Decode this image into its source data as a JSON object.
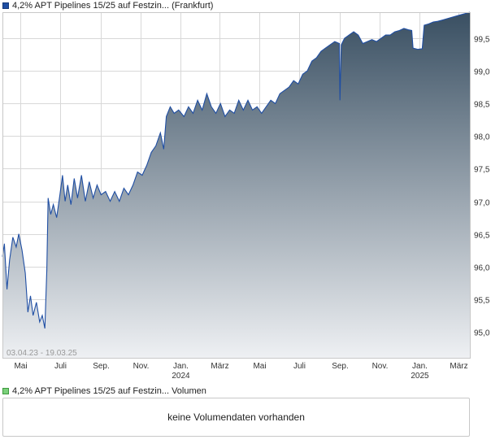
{
  "price_chart": {
    "legend": "4,2% APT Pipelines 15/25 auf Festzin... (Frankfurt)",
    "range_label": "03.04.23 - 19.03.25",
    "colors": {
      "line": "#1f4ea3",
      "fill_top": "#394f62",
      "fill_bottom": "#eef0f3",
      "grid": "#d8d8d8",
      "frame": "#c8c8c8"
    }
  },
  "volume_chart": {
    "legend": "4,2% APT Pipelines 15/25 auf Festzin... Volumen",
    "message": "keine Volumendaten vorhanden"
  },
  "chart_data": {
    "type": "area",
    "x_unit": "month",
    "xlim": [
      "2023-04-03",
      "2025-03-19"
    ],
    "ylim": [
      94.6,
      99.9
    ],
    "y_ticks": [
      95.0,
      95.5,
      96.0,
      96.5,
      97.0,
      97.5,
      98.0,
      98.5,
      99.0,
      99.5
    ],
    "y_tick_labels": [
      "95,0",
      "95,5",
      "96,0",
      "96,5",
      "97,0",
      "97,5",
      "98,0",
      "98,5",
      "99,0",
      "99,5"
    ],
    "x_ticks": [
      {
        "date": "2023-05-01",
        "label": "Mai",
        "year": ""
      },
      {
        "date": "2023-07-01",
        "label": "Juli",
        "year": ""
      },
      {
        "date": "2023-09-01",
        "label": "Sep.",
        "year": ""
      },
      {
        "date": "2023-11-01",
        "label": "Nov.",
        "year": ""
      },
      {
        "date": "2024-01-01",
        "label": "Jan.",
        "year": "2024"
      },
      {
        "date": "2024-03-01",
        "label": "März",
        "year": ""
      },
      {
        "date": "2024-05-01",
        "label": "Mai",
        "year": ""
      },
      {
        "date": "2024-07-01",
        "label": "Juli",
        "year": ""
      },
      {
        "date": "2024-09-01",
        "label": "Sep.",
        "year": ""
      },
      {
        "date": "2024-11-01",
        "label": "Nov.",
        "year": ""
      },
      {
        "date": "2025-01-01",
        "label": "Jan.",
        "year": "2025"
      },
      {
        "date": "2025-03-01",
        "label": "März",
        "year": ""
      }
    ],
    "grid": true,
    "series": [
      {
        "points": [
          [
            "2023-04-03",
            96.15
          ],
          [
            "2023-04-06",
            96.35
          ],
          [
            "2023-04-10",
            95.65
          ],
          [
            "2023-04-14",
            96.1
          ],
          [
            "2023-04-19",
            96.45
          ],
          [
            "2023-04-24",
            96.3
          ],
          [
            "2023-04-28",
            96.5
          ],
          [
            "2023-05-03",
            96.25
          ],
          [
            "2023-05-08",
            95.9
          ],
          [
            "2023-05-12",
            95.3
          ],
          [
            "2023-05-16",
            95.55
          ],
          [
            "2023-05-20",
            95.25
          ],
          [
            "2023-05-25",
            95.45
          ],
          [
            "2023-05-30",
            95.15
          ],
          [
            "2023-06-03",
            95.25
          ],
          [
            "2023-06-07",
            95.05
          ],
          [
            "2023-06-10",
            95.95
          ],
          [
            "2023-06-12",
            97.05
          ],
          [
            "2023-06-16",
            96.8
          ],
          [
            "2023-06-20",
            96.95
          ],
          [
            "2023-06-25",
            96.75
          ],
          [
            "2023-06-30",
            97.1
          ],
          [
            "2023-07-04",
            97.4
          ],
          [
            "2023-07-08",
            97.0
          ],
          [
            "2023-07-12",
            97.25
          ],
          [
            "2023-07-17",
            96.95
          ],
          [
            "2023-07-22",
            97.35
          ],
          [
            "2023-07-27",
            97.05
          ],
          [
            "2023-08-02",
            97.4
          ],
          [
            "2023-08-08",
            97.0
          ],
          [
            "2023-08-14",
            97.3
          ],
          [
            "2023-08-20",
            97.05
          ],
          [
            "2023-08-26",
            97.25
          ],
          [
            "2023-09-01",
            97.1
          ],
          [
            "2023-09-08",
            97.15
          ],
          [
            "2023-09-15",
            97.0
          ],
          [
            "2023-09-22",
            97.15
          ],
          [
            "2023-09-29",
            97.0
          ],
          [
            "2023-10-06",
            97.2
          ],
          [
            "2023-10-13",
            97.1
          ],
          [
            "2023-10-20",
            97.25
          ],
          [
            "2023-10-27",
            97.45
          ],
          [
            "2023-11-03",
            97.4
          ],
          [
            "2023-11-10",
            97.55
          ],
          [
            "2023-11-17",
            97.75
          ],
          [
            "2023-11-24",
            97.85
          ],
          [
            "2023-12-01",
            98.05
          ],
          [
            "2023-12-06",
            97.8
          ],
          [
            "2023-12-10",
            98.3
          ],
          [
            "2023-12-16",
            98.45
          ],
          [
            "2023-12-22",
            98.35
          ],
          [
            "2023-12-29",
            98.4
          ],
          [
            "2024-01-06",
            98.3
          ],
          [
            "2024-01-13",
            98.45
          ],
          [
            "2024-01-20",
            98.35
          ],
          [
            "2024-01-27",
            98.55
          ],
          [
            "2024-02-03",
            98.4
          ],
          [
            "2024-02-10",
            98.65
          ],
          [
            "2024-02-17",
            98.45
          ],
          [
            "2024-02-24",
            98.35
          ],
          [
            "2024-03-02",
            98.5
          ],
          [
            "2024-03-09",
            98.3
          ],
          [
            "2024-03-16",
            98.4
          ],
          [
            "2024-03-23",
            98.35
          ],
          [
            "2024-03-30",
            98.55
          ],
          [
            "2024-04-06",
            98.4
          ],
          [
            "2024-04-13",
            98.55
          ],
          [
            "2024-04-20",
            98.4
          ],
          [
            "2024-04-27",
            98.45
          ],
          [
            "2024-05-04",
            98.35
          ],
          [
            "2024-05-11",
            98.45
          ],
          [
            "2024-05-18",
            98.55
          ],
          [
            "2024-05-25",
            98.5
          ],
          [
            "2024-06-01",
            98.65
          ],
          [
            "2024-06-08",
            98.7
          ],
          [
            "2024-06-15",
            98.75
          ],
          [
            "2024-06-22",
            98.85
          ],
          [
            "2024-06-29",
            98.8
          ],
          [
            "2024-07-06",
            98.95
          ],
          [
            "2024-07-13",
            99.0
          ],
          [
            "2024-07-20",
            99.15
          ],
          [
            "2024-07-27",
            99.2
          ],
          [
            "2024-08-03",
            99.3
          ],
          [
            "2024-08-10",
            99.35
          ],
          [
            "2024-08-17",
            99.4
          ],
          [
            "2024-08-24",
            99.45
          ],
          [
            "2024-08-31",
            99.42
          ],
          [
            "2024-09-01",
            98.55
          ],
          [
            "2024-09-03",
            99.4
          ],
          [
            "2024-09-08",
            99.5
          ],
          [
            "2024-09-15",
            99.55
          ],
          [
            "2024-09-22",
            99.6
          ],
          [
            "2024-09-29",
            99.55
          ],
          [
            "2024-10-06",
            99.42
          ],
          [
            "2024-10-13",
            99.45
          ],
          [
            "2024-10-20",
            99.48
          ],
          [
            "2024-10-27",
            99.45
          ],
          [
            "2024-11-03",
            99.5
          ],
          [
            "2024-11-10",
            99.55
          ],
          [
            "2024-11-17",
            99.55
          ],
          [
            "2024-11-24",
            99.6
          ],
          [
            "2024-12-01",
            99.62
          ],
          [
            "2024-12-08",
            99.65
          ],
          [
            "2024-12-15",
            99.63
          ],
          [
            "2024-12-20",
            99.62
          ],
          [
            "2024-12-22",
            99.35
          ],
          [
            "2024-12-29",
            99.33
          ],
          [
            "2025-01-05",
            99.34
          ],
          [
            "2025-01-08",
            99.7
          ],
          [
            "2025-01-15",
            99.72
          ],
          [
            "2025-01-22",
            99.75
          ],
          [
            "2025-01-29",
            99.76
          ],
          [
            "2025-02-05",
            99.78
          ],
          [
            "2025-02-12",
            99.8
          ],
          [
            "2025-02-19",
            99.82
          ],
          [
            "2025-02-26",
            99.84
          ],
          [
            "2025-03-05",
            99.86
          ],
          [
            "2025-03-12",
            99.88
          ],
          [
            "2025-03-19",
            99.9
          ]
        ]
      }
    ]
  }
}
